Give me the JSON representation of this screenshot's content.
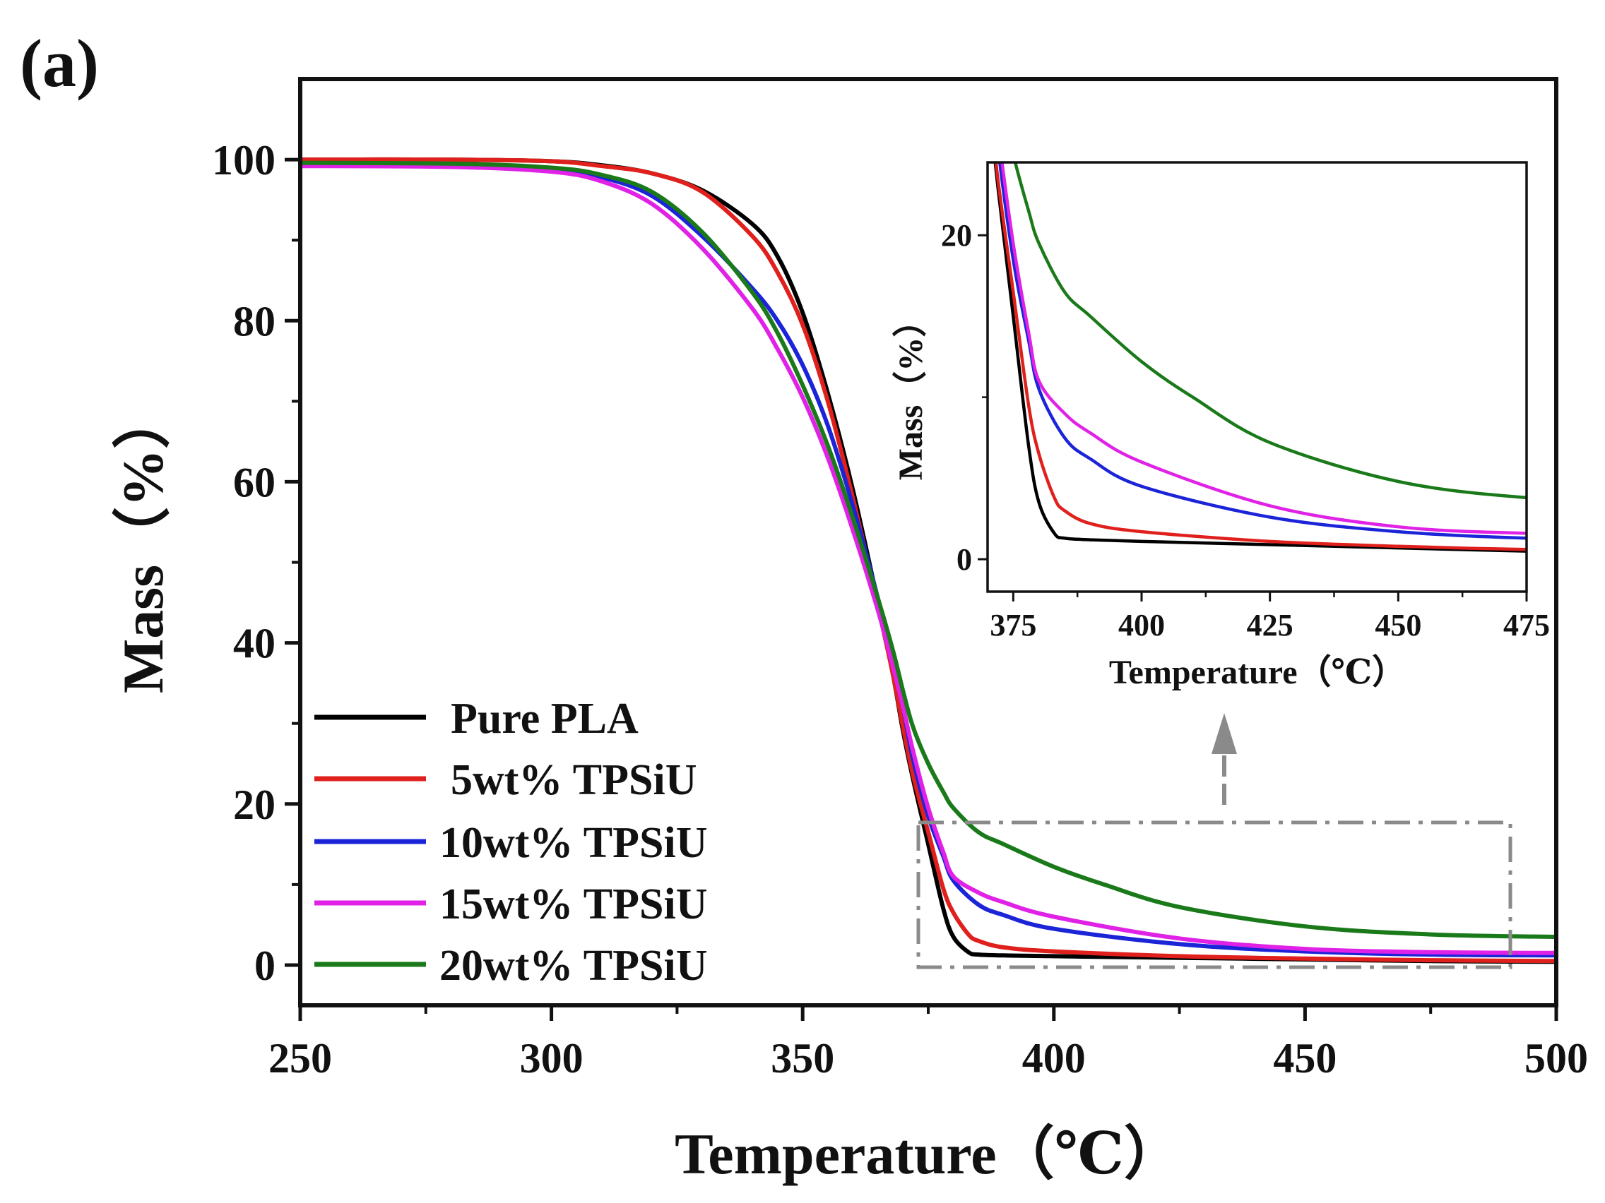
{
  "panel_label": "(a)",
  "chart_data": [
    {
      "id": "main",
      "type": "line",
      "xlabel": "Temperature（℃）",
      "ylabel": "Mass（%）",
      "xlim": [
        250,
        500
      ],
      "ylim": [
        -5,
        110
      ],
      "xticks": [
        "250",
        "300",
        "350",
        "400",
        "450",
        "500"
      ],
      "yticks": [
        "0",
        "20",
        "40",
        "60",
        "80",
        "100"
      ],
      "legend_position": "bottom-left",
      "annotation": "dash-dot box around 373–491 ℃, 0–18 % with arrow pointing up to inset",
      "series": [
        {
          "name": "Pure PLA",
          "color": "#000000",
          "x": [
            250,
            280,
            300,
            310,
            320,
            330,
            340,
            345,
            350,
            355,
            360,
            365,
            368,
            370,
            372,
            375,
            378,
            380,
            383,
            385,
            390,
            400,
            425,
            450,
            475,
            500
          ],
          "y": [
            100,
            100,
            99.8,
            99.3,
            98.3,
            96.2,
            92,
            88,
            81,
            71,
            59,
            45,
            36,
            29,
            23,
            15,
            7,
            3.5,
            1.6,
            1.3,
            1.2,
            1.1,
            0.9,
            0.7,
            0.5,
            0.4
          ]
        },
        {
          "name": "5wt% TPSiU",
          "color": "#e0201c",
          "x": [
            250,
            280,
            300,
            310,
            320,
            330,
            340,
            345,
            350,
            355,
            360,
            365,
            368,
            370,
            372,
            375,
            378,
            380,
            383,
            385,
            390,
            400,
            425,
            450,
            475,
            500
          ],
          "y": [
            100,
            100,
            99.8,
            99.2,
            98.3,
            96,
            90.5,
            86,
            79.5,
            70,
            58,
            44.5,
            36,
            29.5,
            23.5,
            16.5,
            9.5,
            6.5,
            3.8,
            3,
            2.2,
            1.7,
            1.1,
            0.8,
            0.6,
            0.5
          ]
        },
        {
          "name": "10wt% TPSiU",
          "color": "#1c24d8",
          "x": [
            250,
            280,
            300,
            310,
            320,
            330,
            340,
            345,
            350,
            355,
            360,
            365,
            368,
            370,
            372,
            375,
            378,
            380,
            385,
            390,
            400,
            425,
            450,
            475,
            500
          ],
          "y": [
            99.4,
            99.3,
            98.8,
            97.8,
            95.5,
            90.5,
            84,
            80,
            74.5,
            67,
            57,
            45.5,
            38,
            32,
            25.5,
            18.5,
            13.5,
            10.5,
            7.5,
            6.2,
            4.5,
            2.6,
            1.7,
            1.3,
            1.2
          ]
        },
        {
          "name": "15wt% TPSiU",
          "color": "#e022e6",
          "x": [
            250,
            280,
            300,
            310,
            320,
            330,
            340,
            345,
            350,
            355,
            360,
            365,
            368,
            370,
            372,
            375,
            378,
            380,
            385,
            390,
            400,
            425,
            450,
            475,
            500
          ],
          "y": [
            99.2,
            99.1,
            98.5,
            97.3,
            94.5,
            89,
            81.5,
            76.5,
            70.5,
            63,
            54,
            44,
            37,
            32,
            26.5,
            19.5,
            14,
            11,
            9,
            7.8,
            6,
            3.3,
            2,
            1.6,
            1.5
          ]
        },
        {
          "name": "20wt% TPSiU",
          "color": "#1a7a1a",
          "x": [
            250,
            280,
            300,
            310,
            320,
            330,
            340,
            345,
            350,
            355,
            360,
            365,
            368,
            370,
            372,
            375,
            378,
            380,
            385,
            390,
            400,
            410,
            425,
            450,
            475,
            500
          ],
          "y": [
            99.6,
            99.5,
            99,
            98.1,
            96,
            91,
            83.5,
            78.5,
            72,
            64.5,
            55.5,
            45.5,
            39,
            34,
            29.5,
            25,
            21.5,
            19.5,
            16.5,
            15,
            12.2,
            10,
            7.2,
            4.8,
            3.8,
            3.5
          ]
        }
      ]
    },
    {
      "id": "inset",
      "type": "line",
      "xlabel": "Temperature（℃）",
      "ylabel": "Mass（%）",
      "xlim": [
        370,
        475
      ],
      "ylim": [
        -2,
        24.5
      ],
      "xticks": [
        "375",
        "400",
        "425",
        "450",
        "475"
      ],
      "yticks": [
        "0",
        "20"
      ],
      "series_ref": "main"
    }
  ]
}
